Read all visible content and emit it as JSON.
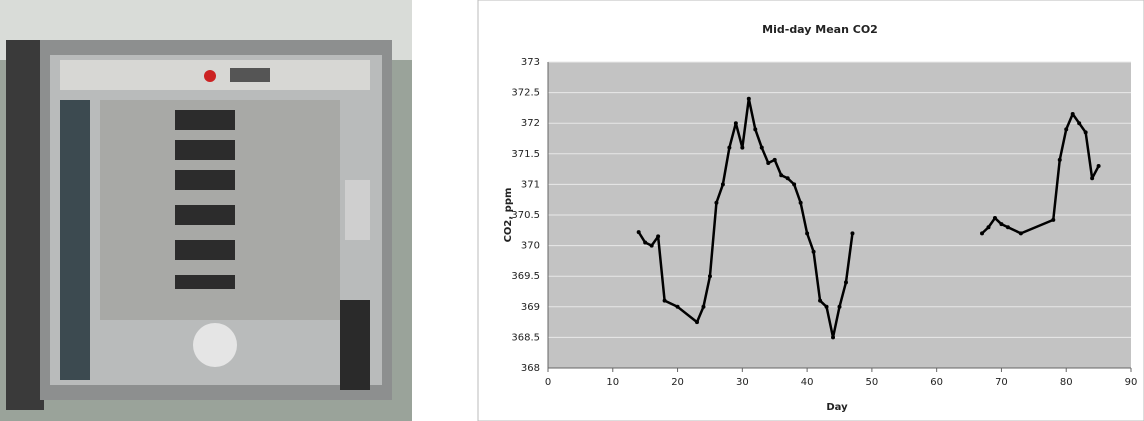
{
  "chart_data": {
    "type": "line",
    "title": "Mid-day Mean CO2",
    "xlabel": "Day",
    "ylabel": "CO2, ppm",
    "xlim": [
      0,
      90
    ],
    "xticks": [
      0,
      10,
      20,
      30,
      40,
      50,
      60,
      70,
      80,
      90
    ],
    "ylim": [
      368,
      373
    ],
    "yticks": [
      368,
      368.5,
      369,
      369.5,
      370,
      370.5,
      371,
      371.5,
      372,
      372.5,
      373
    ],
    "grid": true,
    "background": "#c3c3c3",
    "series": [
      {
        "color": "#000000",
        "x": [
          14,
          15,
          16,
          17,
          18,
          20,
          23,
          24,
          25,
          26,
          27,
          28,
          29,
          30,
          31,
          32,
          33,
          34,
          35,
          36,
          37,
          38,
          39,
          40,
          41,
          42,
          43,
          44,
          45,
          46,
          47
        ],
        "values": [
          370.22,
          370.05,
          370.0,
          370.15,
          369.1,
          369.0,
          368.75,
          369.0,
          369.5,
          370.7,
          371.0,
          371.6,
          372.0,
          371.6,
          372.4,
          371.9,
          371.6,
          371.35,
          371.4,
          371.15,
          371.1,
          371.0,
          370.7,
          370.2,
          369.9,
          369.1,
          369.0,
          368.5,
          369.0,
          369.4,
          370.2
        ]
      },
      {
        "color": "#000000",
        "x": [
          67,
          68,
          69,
          70,
          71,
          73,
          78,
          79,
          80,
          81,
          82,
          83,
          84,
          85
        ],
        "values": [
          370.2,
          370.3,
          370.45,
          370.35,
          370.3,
          370.2,
          370.42,
          371.4,
          371.9,
          372.15,
          372.0,
          371.85,
          371.1,
          371.3
        ]
      }
    ]
  }
}
